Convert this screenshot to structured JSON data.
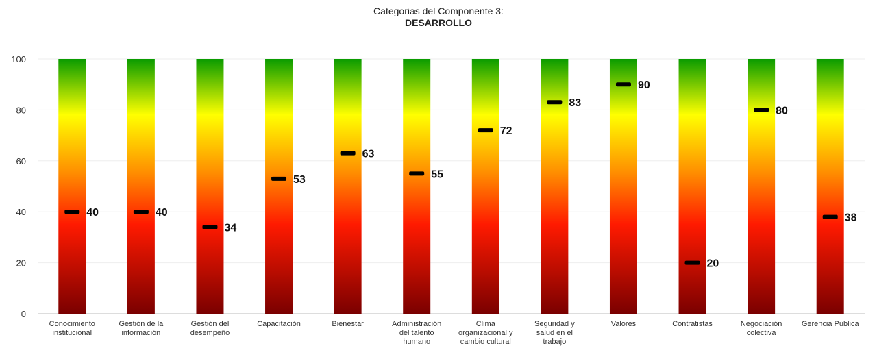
{
  "chart_data": {
    "type": "bar",
    "title": "Categorias del Componente 3:",
    "subtitle": "DESARROLLO",
    "xlabel": "",
    "ylabel": "",
    "ylim": [
      0,
      100
    ],
    "yticks": [
      "0",
      "20",
      "40",
      "60",
      "80",
      "100"
    ],
    "grid": true,
    "categories": [
      [
        "Conocimiento",
        "institucional"
      ],
      [
        "Gestión de la",
        "información"
      ],
      [
        "Gestión del",
        "desempeño"
      ],
      [
        "Capacitación"
      ],
      [
        "Bienestar"
      ],
      [
        "Administración",
        "del talento",
        "humano"
      ],
      [
        "Clima",
        "organizacional y",
        "cambio cultural"
      ],
      [
        "Seguridad y",
        "salud en el",
        "trabajo"
      ],
      [
        "Valores"
      ],
      [
        "Contratistas"
      ],
      [
        "Negociación",
        "colectiva"
      ],
      [
        "Gerencia Pública"
      ]
    ],
    "values": [
      40,
      40,
      34,
      53,
      63,
      55,
      72,
      83,
      90,
      20,
      80,
      38
    ],
    "gradient_colors": [
      "#7a0000",
      "#ff1a00",
      "#ff8c00",
      "#ffff00",
      "#0a9b00"
    ]
  }
}
